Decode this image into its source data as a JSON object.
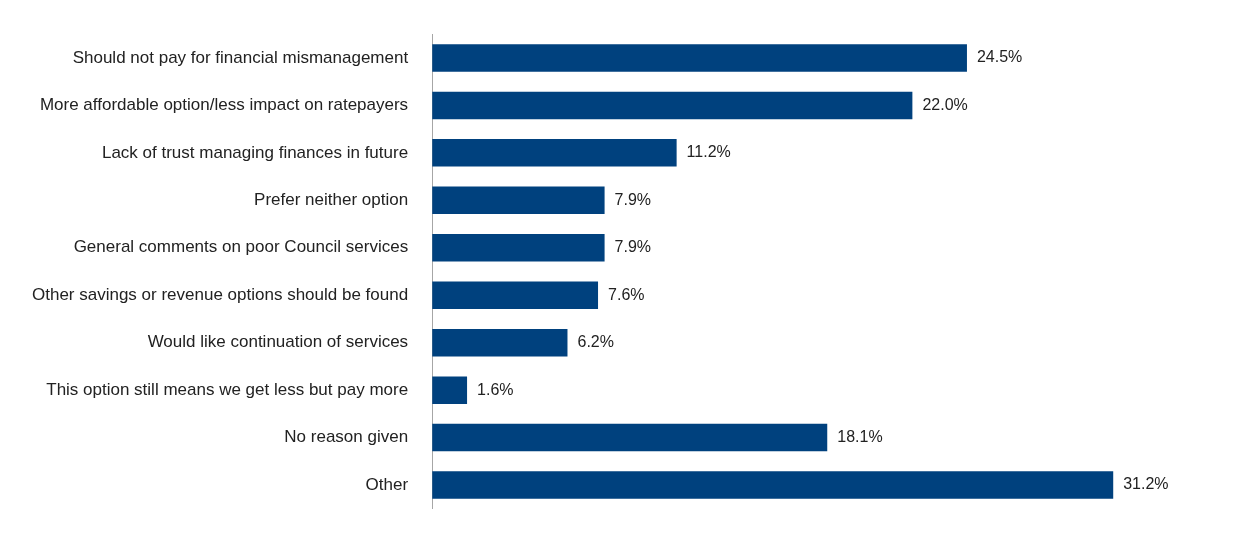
{
  "chart_data": {
    "type": "bar",
    "orientation": "horizontal",
    "categories": [
      "Should not pay for financial mismanagement",
      "More affordable option/less impact on ratepayers",
      "Lack of trust managing finances in future",
      "Prefer neither option",
      "General comments on poor Council services",
      "Other savings or revenue options should be found",
      "Would like continuation of services",
      "This option still means we get less but pay more",
      "No reason given",
      "Other"
    ],
    "values": [
      24.5,
      22.0,
      11.2,
      7.9,
      7.9,
      7.6,
      6.2,
      1.6,
      18.1,
      31.2
    ],
    "value_labels": [
      "24.5%",
      "22.0%",
      "11.2%",
      "7.9%",
      "7.9%",
      "7.6%",
      "6.2%",
      "1.6%",
      "18.1%",
      "31.2%"
    ],
    "color": "#00417e"
  }
}
